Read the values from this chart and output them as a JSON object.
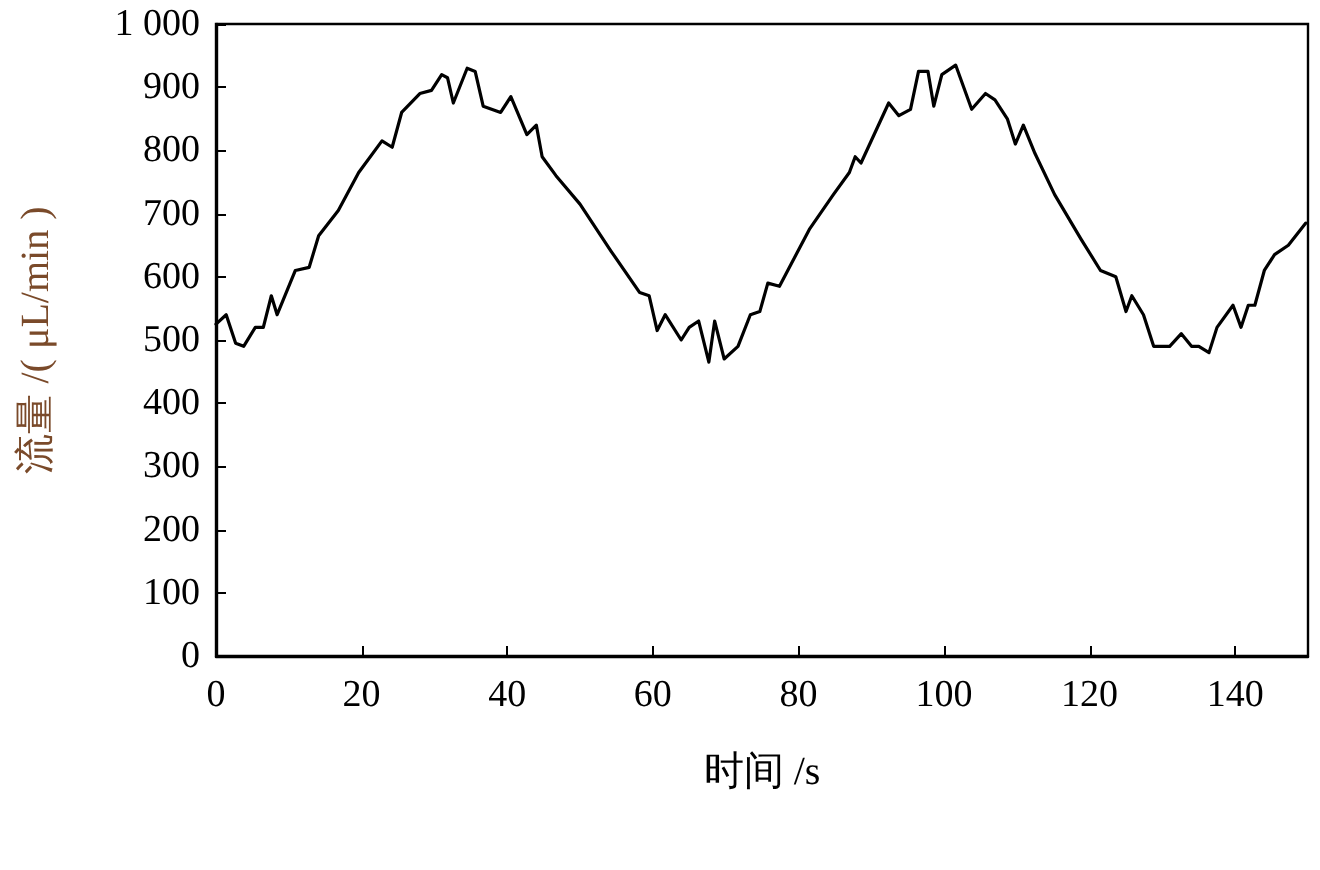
{
  "chart_data": {
    "type": "line",
    "xlabel": "时间 /s",
    "ylabel": "流量 /( μL/min )",
    "xlim": [
      0,
      150
    ],
    "xticks": [
      0,
      20,
      40,
      60,
      80,
      100,
      120,
      140
    ],
    "ylim": [
      0,
      1000
    ],
    "yticks": [
      0,
      100,
      200,
      300,
      400,
      500,
      600,
      700,
      800,
      900,
      {
        "value": 1000,
        "label": "1 000"
      }
    ],
    "grid": false,
    "marker": "none",
    "line_style": "solid",
    "series": [
      {
        "color": "#000000",
        "x": [
          0,
          1.4,
          2.7,
          3.8,
          5.4,
          6.5,
          7.6,
          8.4,
          10.9,
          12.8,
          14.1,
          16.8,
          19.6,
          22.8,
          24.2,
          25.5,
          28,
          29.6,
          31,
          31.8,
          32.6,
          34.5,
          35.6,
          36.7,
          39.1,
          40.5,
          42.7,
          44,
          44.8,
          46.7,
          50,
          54.3,
          58.2,
          59.5,
          60.6,
          61.7,
          63.9,
          65,
          66.3,
          67.7,
          68.5,
          69.8,
          71.7,
          73.4,
          74.7,
          75.8,
          77.4,
          81.5,
          84.8,
          87,
          87.8,
          88.6,
          92.4,
          93.8,
          95.4,
          96.5,
          97.8,
          98.6,
          99.7,
          101.6,
          103.8,
          105.7,
          107,
          108.7,
          109.8,
          110.9,
          112.5,
          115.2,
          118.8,
          121.5,
          123.6,
          125,
          125.8,
          127.4,
          128.8,
          131,
          132.6,
          134,
          135,
          136.4,
          137.5,
          139.7,
          140.8,
          141.8,
          142.7,
          144,
          145.4,
          147.3,
          149.7
        ],
        "values": [
          525,
          540,
          495,
          490,
          520,
          520,
          570,
          540,
          610,
          615,
          665,
          705,
          765,
          815,
          805,
          860,
          890,
          895,
          920,
          915,
          875,
          930,
          925,
          870,
          860,
          885,
          825,
          840,
          790,
          760,
          715,
          640,
          575,
          570,
          515,
          540,
          500,
          520,
          530,
          465,
          530,
          470,
          490,
          540,
          545,
          590,
          585,
          675,
          730,
          765,
          790,
          780,
          875,
          855,
          865,
          925,
          925,
          870,
          920,
          935,
          865,
          890,
          880,
          850,
          810,
          840,
          795,
          730,
          660,
          610,
          600,
          545,
          570,
          540,
          490,
          490,
          510,
          490,
          490,
          480,
          520,
          555,
          520,
          555,
          555,
          610,
          635,
          650,
          685
        ]
      }
    ]
  }
}
